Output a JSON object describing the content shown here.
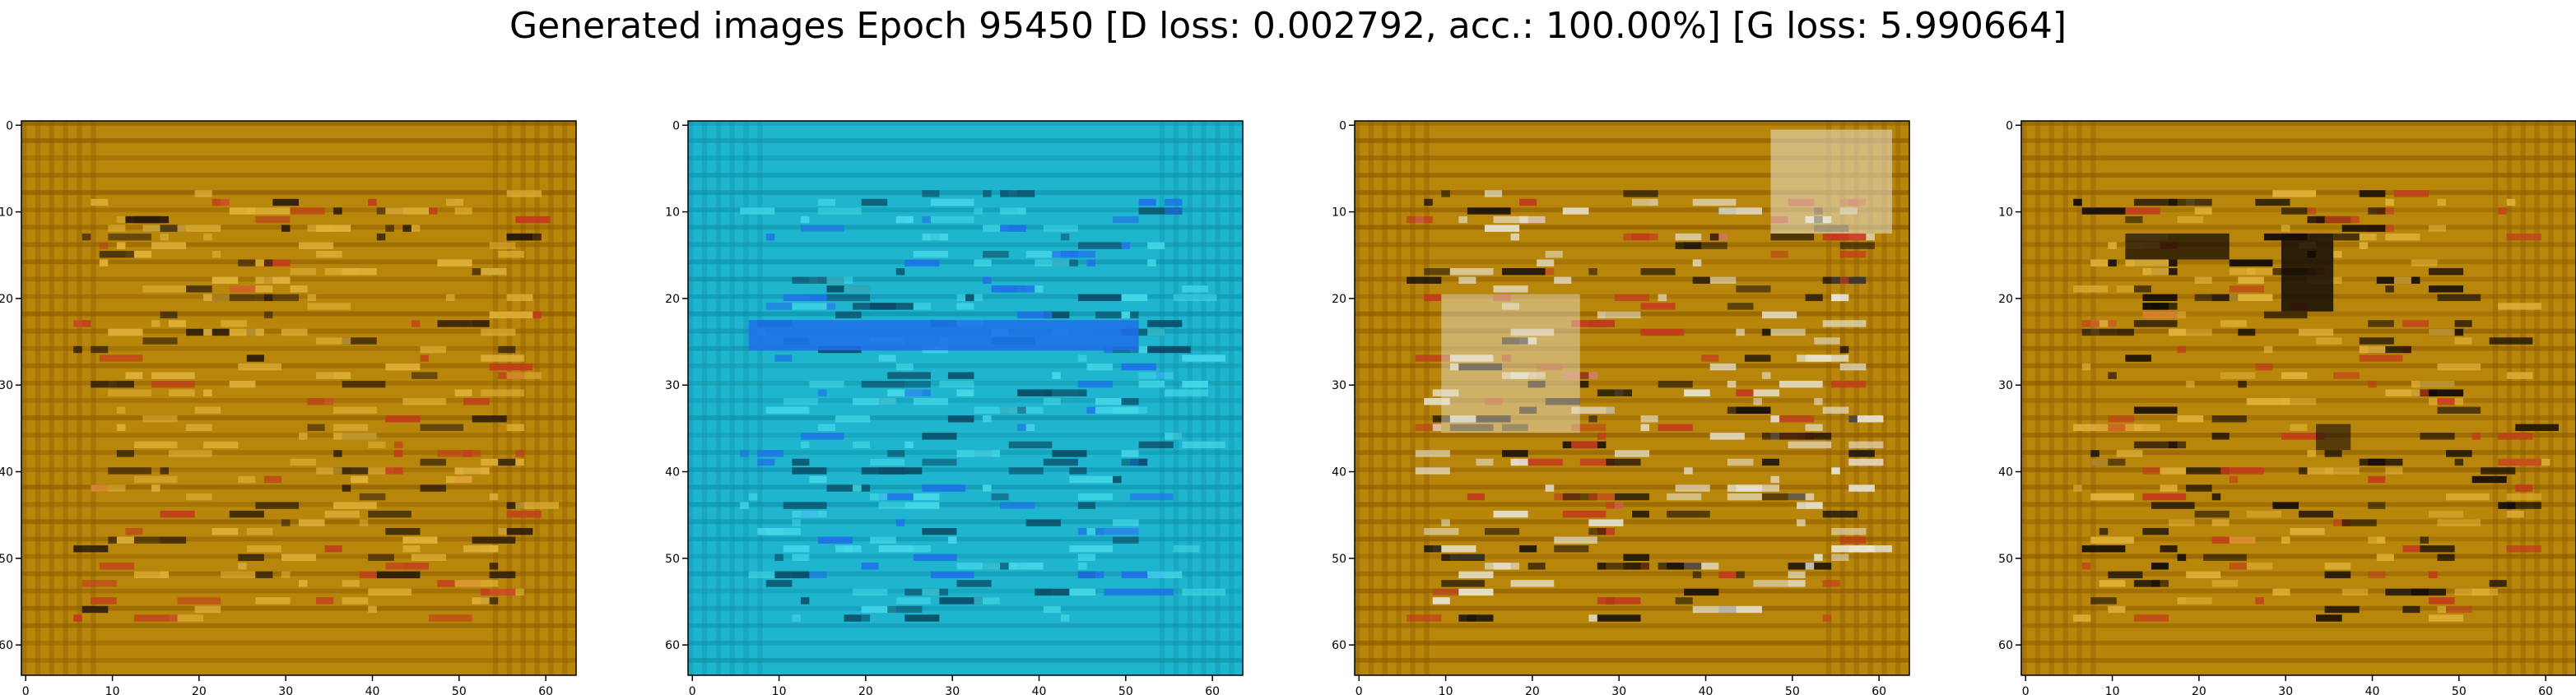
{
  "figure": {
    "title": "Generated images Epoch 95450 [D loss: 0.002792, acc.: 100.00%] [G loss: 5.990664]"
  },
  "panels": [
    {
      "label": "generated-image-1",
      "palette": {
        "base": "#b8860b",
        "stripe": "#8a5a00",
        "light": "#e0b23a",
        "dark": "#2a1a08",
        "accent": "#c23b1c"
      },
      "x_ticks": [
        "0",
        "10",
        "20",
        "30",
        "40",
        "50",
        "60"
      ],
      "y_ticks": [
        "0",
        "10",
        "20",
        "30",
        "40",
        "50",
        "60"
      ]
    },
    {
      "label": "generated-image-2",
      "palette": {
        "base": "#1fb5cf",
        "stripe": "#0e8fa8",
        "light": "#45d8e8",
        "dark": "#0a4c66",
        "accent": "#1f6fe8"
      },
      "x_ticks": [
        "0",
        "10",
        "20",
        "30",
        "40",
        "50",
        "60"
      ],
      "y_ticks": [
        "0",
        "10",
        "20",
        "30",
        "40",
        "50",
        "60"
      ]
    },
    {
      "label": "generated-image-3",
      "palette": {
        "base": "#b8860b",
        "stripe": "#8a5a00",
        "light": "#e8e4d4",
        "dark": "#1a1208",
        "accent": "#c23b1c"
      },
      "x_ticks": [
        "0",
        "10",
        "20",
        "30",
        "40",
        "50",
        "60"
      ],
      "y_ticks": [
        "0",
        "10",
        "20",
        "30",
        "40",
        "50",
        "60"
      ]
    },
    {
      "label": "generated-image-4",
      "palette": {
        "base": "#b8860b",
        "stripe": "#8a5a00",
        "light": "#e0b23a",
        "dark": "#140c06",
        "accent": "#c23b1c"
      },
      "x_ticks": [
        "0",
        "10",
        "20",
        "30",
        "40",
        "50",
        "60"
      ],
      "y_ticks": [
        "0",
        "10",
        "20",
        "30",
        "40",
        "50",
        "60"
      ]
    }
  ]
}
